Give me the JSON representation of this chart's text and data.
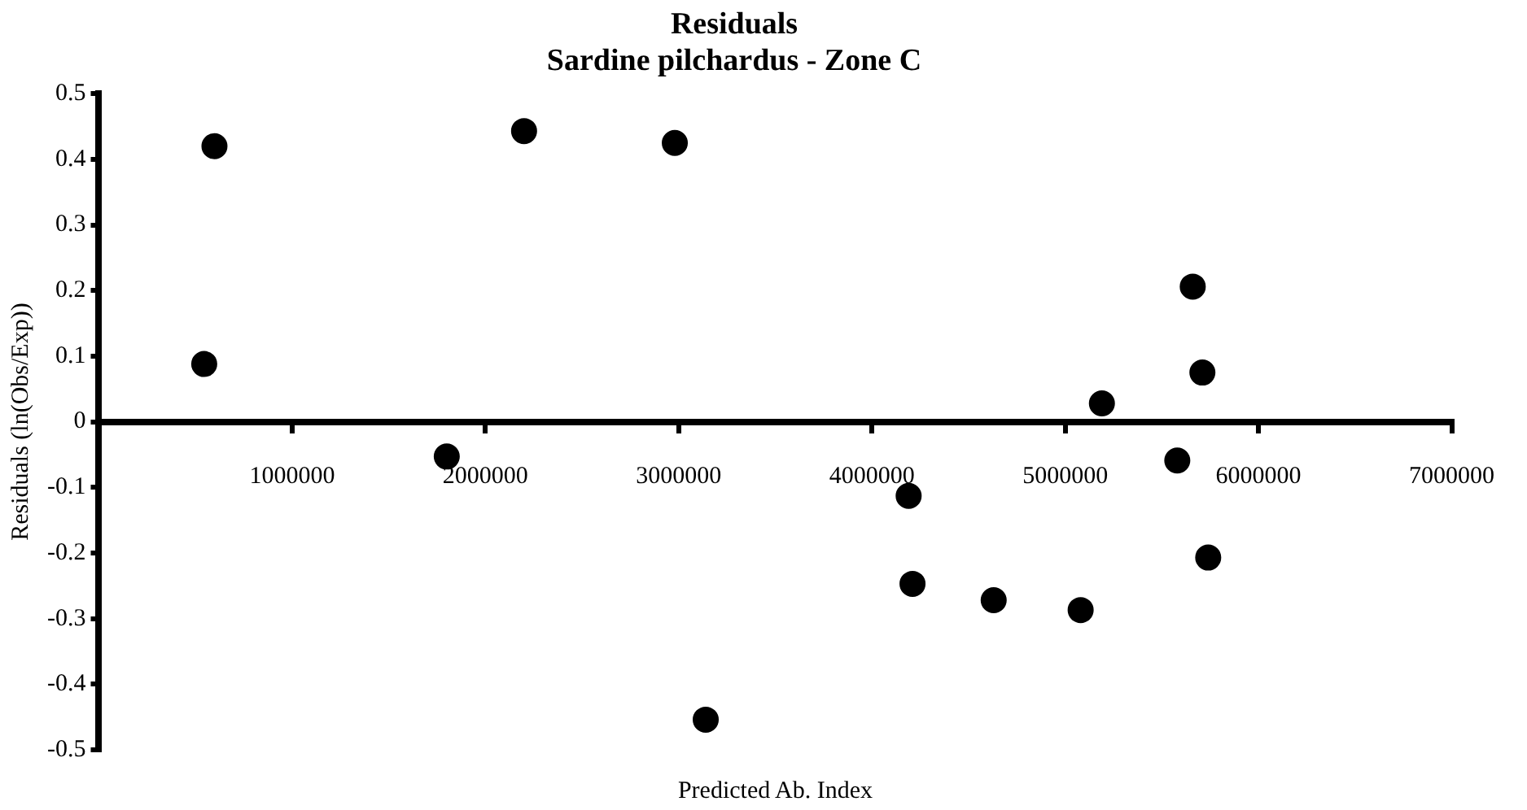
{
  "chart_data": {
    "type": "scatter",
    "title": "Residuals",
    "subtitle": "Sardine pilchardus - Zone C",
    "xlabel": "Predicted Ab. Index",
    "ylabel": "Residuals (ln(Obs/Exp))",
    "x": [
      545000,
      598000,
      1800000,
      2200000,
      2980000,
      3140000,
      4190000,
      4210000,
      4630000,
      5080000,
      5190000,
      5580000,
      5660000,
      5710000,
      5740000
    ],
    "series": [
      {
        "color": "#000000",
        "values": [
          0.088,
          0.42,
          -0.053,
          0.443,
          0.425,
          -0.454,
          -0.113,
          -0.247,
          -0.272,
          -0.287,
          0.028,
          -0.059,
          0.206,
          0.075,
          -0.207
        ]
      }
    ],
    "xlim": [
      0,
      7000000
    ],
    "xticks": [
      1000000,
      2000000,
      3000000,
      4000000,
      5000000,
      6000000,
      7000000
    ],
    "ylim": [
      -0.5,
      0.5
    ],
    "yticks": [
      -0.5,
      -0.4,
      -0.3,
      -0.2,
      -0.1,
      0,
      0.1,
      0.2,
      0.3,
      0.4,
      0.5
    ],
    "grid": false,
    "legend": false,
    "marker": "circle"
  }
}
